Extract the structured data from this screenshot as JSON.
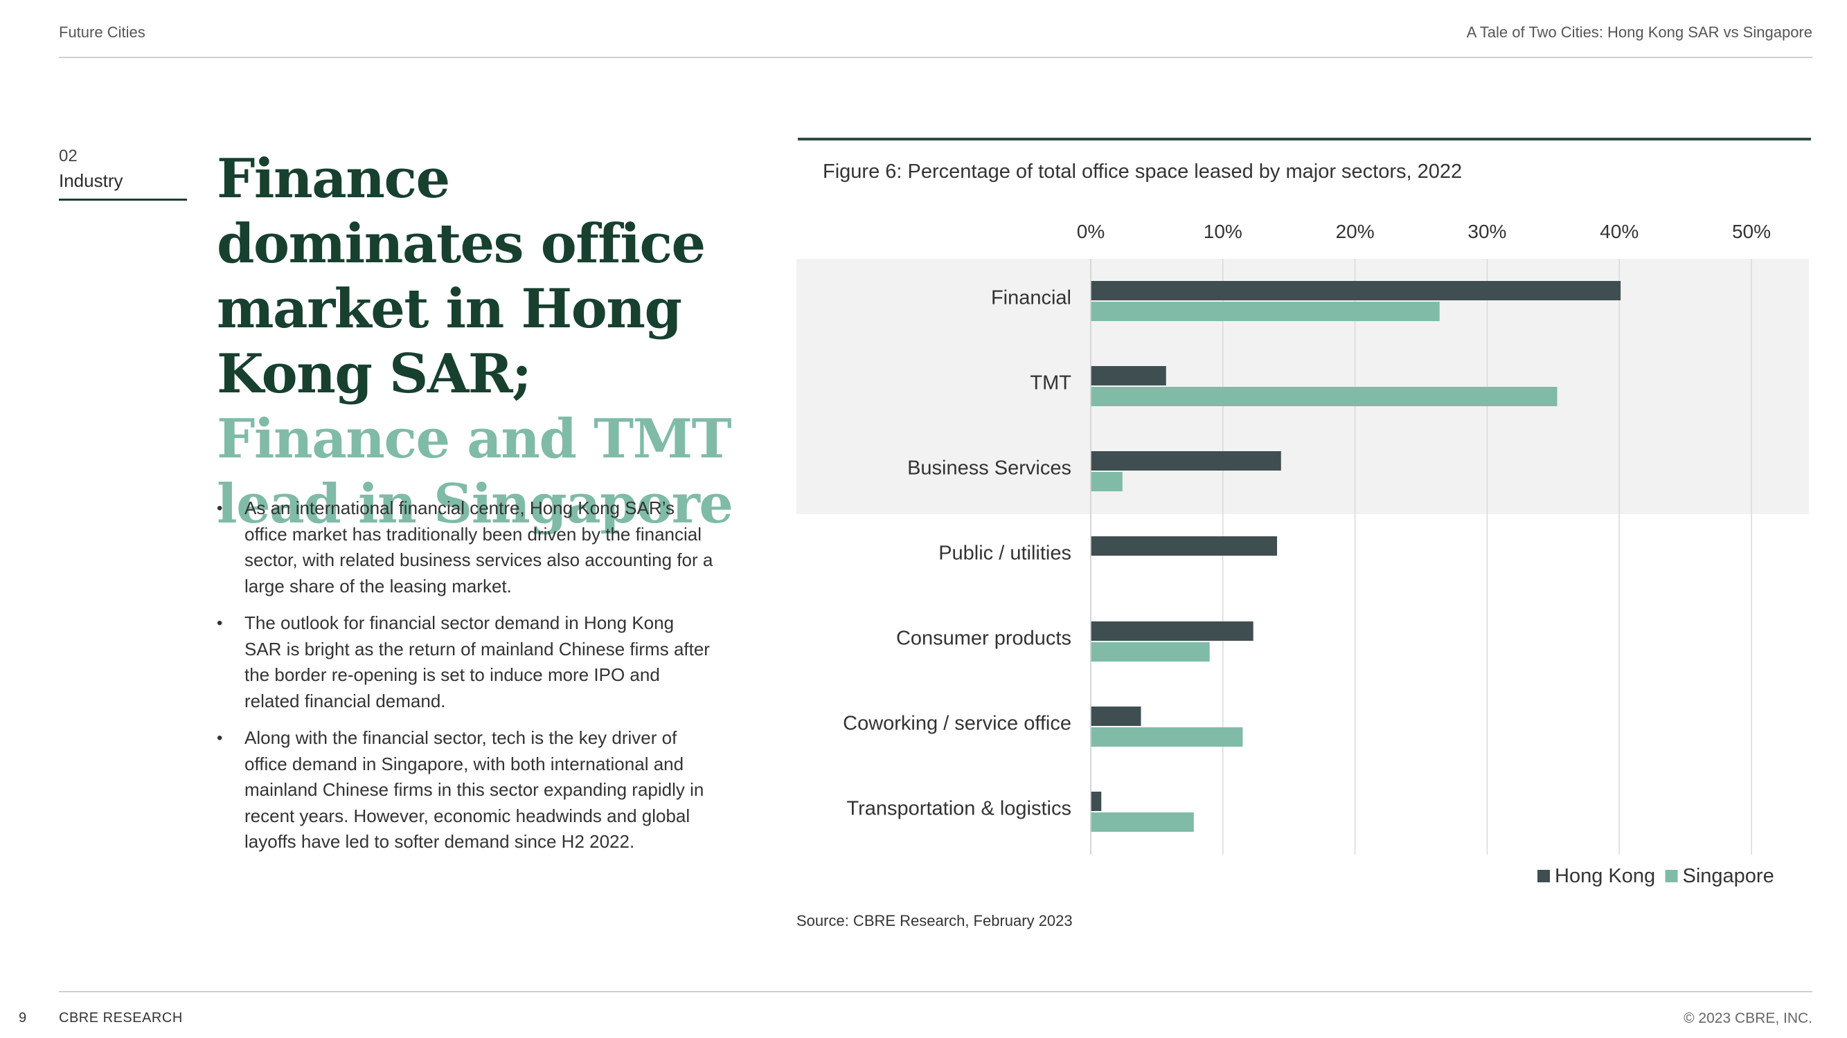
{
  "header": {
    "left": "Future Cities",
    "right": "A Tale of Two Cities: Hong Kong SAR vs Singapore"
  },
  "section": {
    "number": "02",
    "name": "Industry"
  },
  "headline": {
    "dark": "Finance dominates office market in Hong Kong SAR;",
    "light": "Finance and TMT lead in Singapore"
  },
  "bullets": [
    "As an international financial centre, Hong Kong SAR’s office market has traditionally been driven by the financial sector, with related business services also accounting for a large share of the leasing market.",
    "The outlook for financial sector demand in Hong Kong SAR is bright as the return of mainland Chinese firms after the border re-opening is set to induce more IPO and related financial demand.",
    "Along with the financial sector, tech is the key driver of office demand in Singapore, with both international and mainland Chinese firms in this sector expanding rapidly in recent years. However, economic headwinds and global layoffs have led to softer demand since H2 2022."
  ],
  "figure": {
    "title": "Figure 6: Percentage of total office space leased by major sectors, 2022",
    "source": "Source: CBRE Research, February 2023"
  },
  "chart_data": {
    "type": "bar",
    "orientation": "horizontal",
    "title": "Figure 6: Percentage of total office space leased by major sectors, 2022",
    "categories": [
      "Financial",
      "TMT",
      "Business Services",
      "Public / utilities",
      "Consumer products",
      "Coworking / service office",
      "Transportation & logistics"
    ],
    "series": [
      {
        "name": "Hong Kong",
        "color": "#3f4e51",
        "values": [
          40.1,
          5.7,
          14.4,
          14.1,
          12.3,
          3.8,
          0.8
        ]
      },
      {
        "name": "Singapore",
        "color": "#80bba8",
        "values": [
          26.4,
          35.3,
          2.4,
          0,
          9.0,
          11.5,
          7.8
        ]
      }
    ],
    "xlim": [
      0,
      50
    ],
    "ticks": [
      0,
      10,
      20,
      30,
      40,
      50
    ],
    "tick_labels": [
      "0%",
      "10%",
      "20%",
      "30%",
      "40%",
      "50%"
    ],
    "tick_position": "top",
    "highlighted_categories": [
      "Financial",
      "TMT",
      "Business Services"
    ],
    "highlight_color": "#f2f2f2",
    "grid": true,
    "legend_position": "bottom-right"
  },
  "footer": {
    "page_number": "9",
    "left": "CBRE RESEARCH",
    "right": "© 2023 CBRE, INC."
  }
}
